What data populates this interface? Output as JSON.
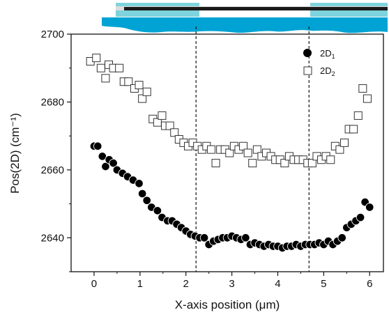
{
  "colors": {
    "accent_light": "#7fd3dd",
    "accent_dark": "#00a3d3",
    "stripe_dark": "#1a1a1a",
    "marker_2d1": "#000000",
    "marker_2d2": "#333333"
  },
  "chart_data": {
    "type": "scatter",
    "xlabel": "X-axis position (μm)",
    "ylabel": "Pos(2D) (cm⁻¹)",
    "xlim": [
      -0.5,
      6.3
    ],
    "ylim": [
      2630,
      2700
    ],
    "xticks": [
      0,
      1,
      2,
      3,
      4,
      5,
      6
    ],
    "yticks": [
      2640,
      2660,
      2680,
      2700
    ],
    "grid": false,
    "legend_placement": "top-right",
    "vertical_lines": [
      2.22,
      4.68
    ],
    "series": [
      {
        "name": "2D",
        "name_subscript": "1",
        "marker": "filled-circle",
        "x": [
          0.0,
          0.08,
          0.18,
          0.25,
          0.33,
          0.42,
          0.5,
          0.62,
          0.73,
          0.85,
          0.98,
          1.05,
          1.15,
          1.25,
          1.38,
          1.48,
          1.6,
          1.7,
          1.8,
          1.9,
          2.0,
          2.1,
          2.2,
          2.3,
          2.4,
          2.5,
          2.6,
          2.7,
          2.8,
          2.9,
          3.0,
          3.1,
          3.2,
          3.3,
          3.4,
          3.5,
          3.6,
          3.7,
          3.8,
          3.9,
          4.0,
          4.1,
          4.2,
          4.3,
          4.4,
          4.5,
          4.6,
          4.7,
          4.8,
          4.9,
          5.0,
          5.1,
          5.2,
          5.3,
          5.4,
          5.5,
          5.6,
          5.7,
          5.8,
          5.9,
          6.0
        ],
        "y": [
          2667,
          2667,
          2664,
          2661,
          2663,
          2662,
          2660,
          2659,
          2658,
          2657,
          2656,
          2653,
          2651,
          2649,
          2648,
          2646,
          2645,
          2645,
          2644,
          2643,
          2642,
          2641,
          2640.5,
          2640,
          2640,
          2638,
          2639,
          2639.5,
          2640,
          2640,
          2640.5,
          2640,
          2639.5,
          2640,
          2638,
          2638.5,
          2638,
          2637.5,
          2638,
          2637.5,
          2637.5,
          2637,
          2637.5,
          2637.5,
          2638,
          2637.5,
          2638,
          2638,
          2638,
          2638.5,
          2638,
          2639,
          2638,
          2639,
          2640,
          2643,
          2644,
          2645,
          2646,
          2650.5,
          2649
        ]
      },
      {
        "name": "2D",
        "name_subscript": "2",
        "marker": "open-square",
        "x": [
          -0.08,
          0.05,
          0.15,
          0.25,
          0.32,
          0.42,
          0.55,
          0.65,
          0.75,
          0.88,
          0.98,
          1.05,
          1.15,
          1.28,
          1.38,
          1.48,
          1.55,
          1.65,
          1.75,
          1.85,
          1.95,
          2.05,
          2.15,
          2.25,
          2.35,
          2.45,
          2.55,
          2.65,
          2.75,
          2.85,
          2.95,
          3.05,
          3.15,
          3.25,
          3.35,
          3.45,
          3.55,
          3.65,
          3.75,
          3.85,
          3.95,
          4.05,
          4.15,
          4.25,
          4.35,
          4.45,
          4.55,
          4.65,
          4.75,
          4.85,
          4.95,
          5.05,
          5.15,
          5.25,
          5.35,
          5.45,
          5.55,
          5.65,
          5.75,
          5.85,
          5.95
        ],
        "y": [
          2692,
          2693,
          2690,
          2687,
          2691,
          2690,
          2690,
          2686,
          2686,
          2684,
          2685,
          2681,
          2683,
          2675,
          2674,
          2676,
          2673,
          2673,
          2671,
          2669,
          2668,
          2667,
          2668,
          2667,
          2666,
          2667,
          2666,
          2662,
          2666,
          2666,
          2665,
          2667,
          2666,
          2667,
          2665,
          2662,
          2666,
          2664,
          2665,
          2664,
          2663,
          2663,
          2662,
          2664,
          2663,
          2663,
          2663,
          2662,
          2662,
          2664,
          2663,
          2664,
          2663,
          2667,
          2666,
          2668,
          2672,
          2672,
          2676,
          2684,
          2681
        ]
      }
    ]
  }
}
